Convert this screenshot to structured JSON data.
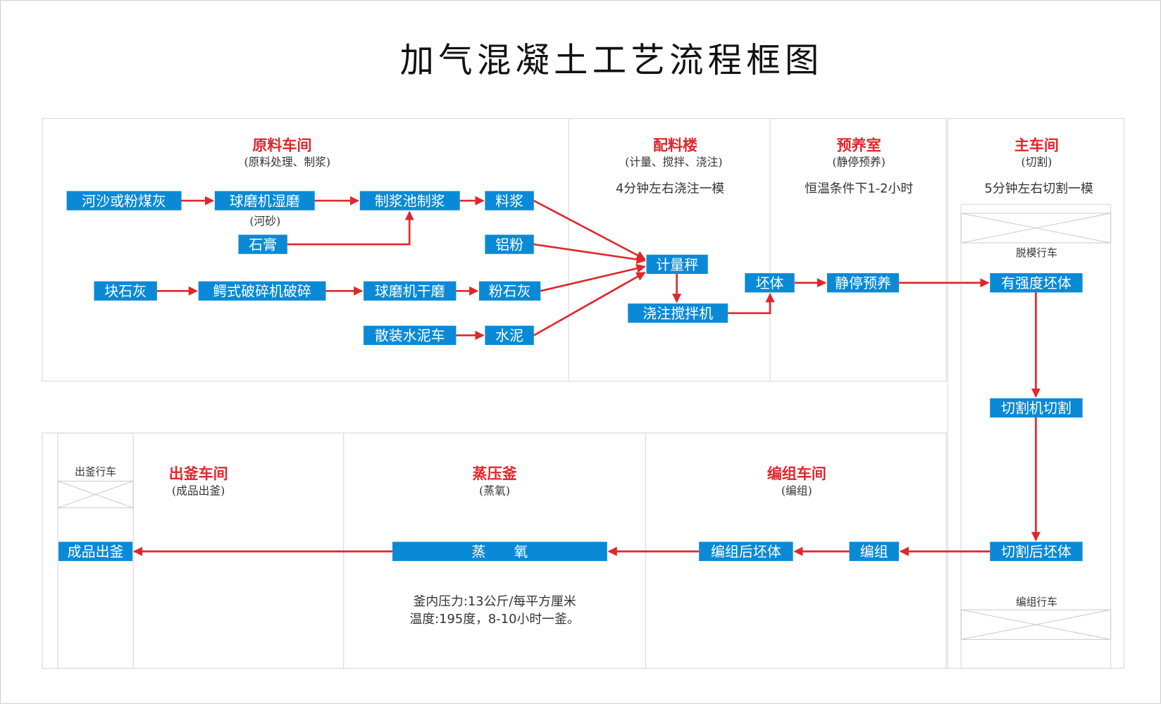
{
  "title": "加气混凝土工艺流程框图",
  "colors": {
    "node_fill": "#0a8ad6",
    "arrow": "#e0262b",
    "section_title": "#e0262b",
    "border": "#dddddd"
  },
  "sections": {
    "raw": {
      "title": "原料车间",
      "sub": "(原料处理、制浆)"
    },
    "batch": {
      "title": "配料楼",
      "sub": "(计量、搅拌、浇注)",
      "note": "4分钟左右浇注一模"
    },
    "precure": {
      "title": "预养室",
      "sub": "(静停预养)",
      "note": "恒温条件下1-2小时"
    },
    "main": {
      "title": "主车间",
      "sub": "(切割)",
      "note": "5分钟左右切割一模"
    },
    "output": {
      "title": "出釜车间",
      "sub": "(成品出釜)"
    },
    "autoclave": {
      "title": "蒸压釜",
      "sub": "(蒸氧)",
      "note1": "釜内压力:13公斤/每平方厘米",
      "note2": "温度:195度，8-10小时一釜。"
    },
    "group": {
      "title": "编组车间",
      "sub": "(编组)"
    }
  },
  "annotations": {
    "river_sand": "(河砂)"
  },
  "cranes": {
    "demold": "脱模行车",
    "group": "编组行车",
    "output": "出釜行车"
  },
  "nodes": {
    "hesha": "河沙或粉煤灰",
    "qiumo_shi": "球磨机湿磨",
    "zhijiang": "制浆池制浆",
    "liaojiang": "料浆",
    "shigao": "石膏",
    "lvfen": "铝粉",
    "kuaishihui": "块石灰",
    "exing": "鳄式破碎机破碎",
    "qiumo_gan": "球磨机干磨",
    "fenshihui": "粉石灰",
    "sanzhuang": "散装水泥车",
    "shuini": "水泥",
    "jiliang": "计量秤",
    "jiaozhu": "浇注搅拌机",
    "peiti": "坯体",
    "jingting": "静停预养",
    "youqiangdu": "有强度坯体",
    "qiege": "切割机切割",
    "qiegehou": "切割后坯体",
    "bianzu": "编组",
    "bianzuhou": "编组后坯体",
    "zhengyang": "蒸　　氧",
    "chengpin": "成品出釜"
  }
}
